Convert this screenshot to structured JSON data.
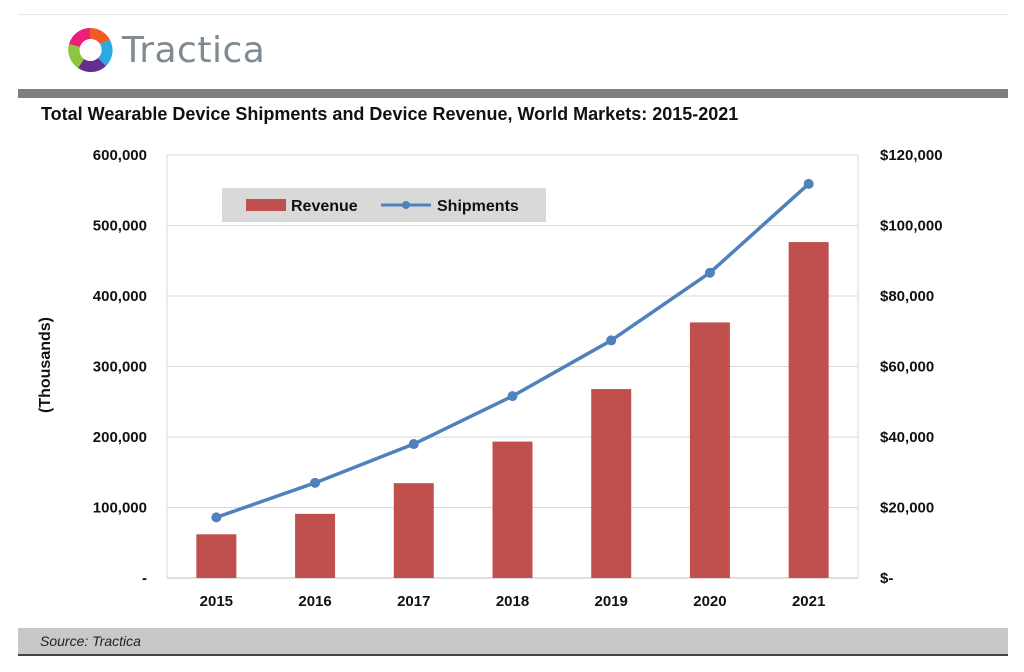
{
  "brand": {
    "name": "Tractica",
    "logo_colors": [
      "#f15a24",
      "#8cc63f",
      "#29abe2",
      "#662d91",
      "#ed1e79"
    ]
  },
  "source": "Source: Tractica",
  "chart_data": {
    "type": "bar+line",
    "title": "Total Wearable Device Shipments and Device Revenue, World Markets: 2015-2021",
    "categories": [
      "2015",
      "2016",
      "2017",
      "2018",
      "2019",
      "2020",
      "2021"
    ],
    "series": [
      {
        "name": "Revenue",
        "type": "bar",
        "axis": "right",
        "color": "#c0504d",
        "values": [
          12400,
          18200,
          26900,
          38700,
          53600,
          72500,
          95300
        ]
      },
      {
        "name": "Shipments",
        "type": "line",
        "axis": "left",
        "color": "#4f81bd",
        "values": [
          86000,
          135000,
          190000,
          258000,
          337000,
          433000,
          559000
        ]
      }
    ],
    "ylabel": "(Thousands)",
    "ylim": [
      0,
      600000
    ],
    "y2lim": [
      0,
      120000
    ],
    "yticks": [
      "-",
      "100,000",
      "200,000",
      "300,000",
      "400,000",
      "500,000",
      "600,000"
    ],
    "y2ticks": [
      "$-",
      "$20,000",
      "$40,000",
      "$60,000",
      "$80,000",
      "$100,000",
      "$120,000"
    ],
    "grid": true,
    "legend": "top-left"
  }
}
